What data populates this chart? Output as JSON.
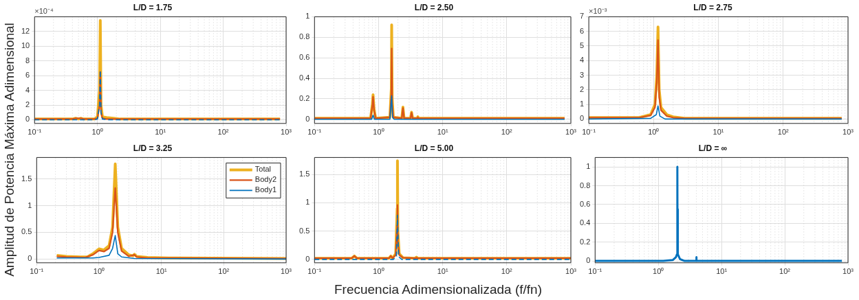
{
  "chart_data": [
    {
      "type": "line",
      "title": "L/D = 1.75",
      "annotations": [
        "×10⁻⁴"
      ],
      "log": "x",
      "grid": true,
      "xlim": [
        0.1,
        1000
      ],
      "xticks": [
        {
          "value": 0.1,
          "label": "10⁻¹"
        },
        {
          "value": 1,
          "label": "10⁰"
        },
        {
          "value": 10,
          "label": "10¹"
        },
        {
          "value": 100,
          "label": "10²"
        },
        {
          "value": 1000,
          "label": "10³"
        }
      ],
      "ylim": [
        -0.5,
        14
      ],
      "yticks": [
        0,
        2,
        4,
        6,
        8,
        10,
        12
      ],
      "series": [
        {
          "color": "#edb120",
          "x": [
            0.1,
            0.4,
            0.45,
            0.5,
            0.55,
            0.6,
            0.9,
            1.0,
            1.08,
            1.11,
            1.14,
            1.2,
            1.4,
            1.8,
            2.3,
            800
          ],
          "values": [
            0.1,
            0.1,
            0.2,
            0.1,
            0.2,
            0.1,
            0.1,
            0.4,
            4,
            13.5,
            2,
            0.4,
            0.3,
            0.2,
            0.1,
            0.1
          ]
        },
        {
          "color": "#d95319",
          "x": [
            0.1,
            0.4,
            0.45,
            0.55,
            0.6,
            0.9,
            1.0,
            1.08,
            1.11,
            1.14,
            1.2,
            1.4,
            2,
            800
          ],
          "values": [
            0.1,
            0.1,
            0.2,
            0.2,
            0.1,
            0.1,
            0.2,
            2,
            6.5,
            1,
            0.2,
            0.1,
            0.1,
            0.1
          ]
        },
        {
          "color": "#0072bd",
          "line_style": "dashed",
          "x": [
            0.1,
            0.9,
            1.0,
            1.08,
            1.11,
            1.14,
            1.2,
            1.5,
            800
          ],
          "values": [
            0,
            0,
            0.1,
            2,
            6.7,
            1,
            0.1,
            0,
            0
          ]
        }
      ]
    },
    {
      "type": "line",
      "title": "L/D = 2.50",
      "log": "x",
      "grid": true,
      "xlim": [
        0.1,
        1000
      ],
      "xticks": [
        {
          "value": 0.1,
          "label": "10⁻¹"
        },
        {
          "value": 1,
          "label": "10⁰"
        },
        {
          "value": 10,
          "label": "10¹"
        },
        {
          "value": 100,
          "label": "10²"
        },
        {
          "value": 1000,
          "label": "10³"
        }
      ],
      "ylim": [
        -0.04,
        1
      ],
      "yticks": [
        0,
        0.2,
        0.4,
        0.6,
        0.8,
        1
      ],
      "series": [
        {
          "color": "#edb120",
          "x": [
            0.1,
            0.75,
            0.8,
            0.82,
            0.85,
            0.9,
            1.5,
            1.58,
            1.6,
            1.63,
            1.7,
            2.3,
            2.4,
            2.5,
            3.15,
            3.27,
            3.4,
            4.0,
            4.1,
            4.2,
            5,
            800
          ],
          "values": [
            0.01,
            0.01,
            0.15,
            0.24,
            0.1,
            0.01,
            0.02,
            0.3,
            0.92,
            0.2,
            0.02,
            0.01,
            0.12,
            0.01,
            0.01,
            0.07,
            0.01,
            0.01,
            0.025,
            0.01,
            0.01,
            0.01
          ]
        },
        {
          "color": "#d95319",
          "x": [
            0.1,
            0.75,
            0.8,
            0.82,
            0.85,
            0.9,
            1.5,
            1.58,
            1.6,
            1.63,
            1.7,
            2.3,
            2.4,
            2.5,
            3.15,
            3.27,
            3.4,
            4.0,
            4.1,
            4.2,
            5,
            800
          ],
          "values": [
            0.01,
            0.01,
            0.13,
            0.22,
            0.09,
            0.01,
            0.02,
            0.25,
            0.69,
            0.15,
            0.02,
            0.01,
            0.11,
            0.01,
            0.01,
            0.065,
            0.01,
            0.01,
            0.02,
            0.01,
            0.01,
            0.01
          ]
        },
        {
          "color": "#0072bd",
          "x": [
            0.1,
            0.78,
            0.82,
            0.86,
            1.5,
            1.6,
            1.65,
            1.75,
            2.4,
            800
          ],
          "values": [
            0,
            0,
            0.04,
            0,
            0,
            0.23,
            0.02,
            0,
            0,
            0
          ]
        }
      ]
    },
    {
      "type": "line",
      "title": "L/D = 2.75",
      "annotations": [
        "×10⁻³"
      ],
      "log": "x",
      "grid": true,
      "xlim": [
        0.1,
        1000
      ],
      "xticks": [
        {
          "value": 0.1,
          "label": "10⁻¹"
        },
        {
          "value": 1,
          "label": "10⁰"
        },
        {
          "value": 10,
          "label": "10¹"
        },
        {
          "value": 100,
          "label": "10²"
        },
        {
          "value": 1000,
          "label": "10³"
        }
      ],
      "ylim": [
        -0.3,
        7
      ],
      "yticks": [
        0,
        1,
        2,
        3,
        4,
        5,
        6,
        7
      ],
      "series": [
        {
          "color": "#edb120",
          "x": [
            0.1,
            0.6,
            0.9,
            1.05,
            1.12,
            1.17,
            1.22,
            1.3,
            1.6,
            2,
            3,
            4,
            800
          ],
          "values": [
            0.1,
            0.1,
            0.3,
            1.0,
            3,
            6.3,
            2,
            0.8,
            0.3,
            0.15,
            0.05,
            0.05,
            0.05
          ]
        },
        {
          "color": "#d95319",
          "x": [
            0.1,
            0.6,
            0.9,
            1.05,
            1.12,
            1.17,
            1.22,
            1.3,
            1.6,
            2,
            3,
            800
          ],
          "values": [
            0.1,
            0.1,
            0.25,
            0.8,
            2.5,
            5.4,
            1.5,
            0.6,
            0.2,
            0.1,
            0.05,
            0.05
          ]
        },
        {
          "color": "#0072bd",
          "x": [
            0.1,
            0.9,
            1.1,
            1.17,
            1.25,
            1.5,
            800
          ],
          "values": [
            0,
            0.05,
            0.3,
            0.9,
            0.2,
            0,
            0
          ]
        }
      ]
    },
    {
      "type": "line",
      "title": "L/D = 3.25",
      "ylabel": "Amplitud de Potencia Máxima Adimensional",
      "legend": "top right",
      "log": "x",
      "grid": true,
      "xlim": [
        0.1,
        1000
      ],
      "xticks": [
        {
          "value": 0.1,
          "label": "10⁻¹"
        },
        {
          "value": 1,
          "label": "10⁰"
        },
        {
          "value": 10,
          "label": "10¹"
        },
        {
          "value": 100,
          "label": "10²"
        },
        {
          "value": 1000,
          "label": "10³"
        }
      ],
      "ylim": [
        -0.07,
        1.9
      ],
      "yticks": [
        0,
        0.5,
        1,
        1.5
      ],
      "series": [
        {
          "name": "Total",
          "color": "#edb120",
          "x": [
            0.21,
            0.3,
            0.5,
            0.65,
            0.8,
            1.0,
            1.2,
            1.45,
            1.65,
            1.82,
            2.0,
            2.3,
            3.0,
            3.5,
            3.7,
            4.0,
            6,
            13,
            1000
          ],
          "values": [
            0.07,
            0.05,
            0.04,
            0.04,
            0.1,
            0.19,
            0.17,
            0.25,
            0.6,
            1.78,
            0.6,
            0.2,
            0.08,
            0.06,
            0.09,
            0.05,
            0.03,
            0.02,
            0.01
          ]
        },
        {
          "name": "Body2",
          "color": "#d95319",
          "x": [
            0.21,
            0.3,
            0.6,
            0.8,
            1.0,
            1.2,
            1.45,
            1.65,
            1.82,
            2.0,
            2.3,
            3.0,
            3.7,
            4.0,
            6,
            1000
          ],
          "values": [
            0.05,
            0.04,
            0.03,
            0.08,
            0.16,
            0.14,
            0.2,
            0.5,
            1.33,
            0.5,
            0.15,
            0.05,
            0.08,
            0.04,
            0.02,
            0.01
          ]
        },
        {
          "name": "Body1",
          "color": "#0072bd",
          "x": [
            0.21,
            0.5,
            0.8,
            1.0,
            1.45,
            1.65,
            1.82,
            2.0,
            2.3,
            3.7,
            1000
          ],
          "values": [
            0.02,
            0.02,
            0.02,
            0.03,
            0.07,
            0.2,
            0.44,
            0.1,
            0.04,
            0.01,
            0
          ]
        }
      ]
    },
    {
      "type": "line",
      "title": "L/D = 5.00",
      "xlabel": "Frecuencia Adimensionalizada (f/fn)",
      "log": "x",
      "grid": true,
      "xlim": [
        0.1,
        1000
      ],
      "xticks": [
        {
          "value": 0.1,
          "label": "10⁻¹"
        },
        {
          "value": 1,
          "label": "10⁰"
        },
        {
          "value": 10,
          "label": "10¹"
        },
        {
          "value": 100,
          "label": "10²"
        },
        {
          "value": 1000,
          "label": "10³"
        }
      ],
      "ylim": [
        -0.06,
        1.8
      ],
      "yticks": [
        0,
        0.5,
        1,
        1.5
      ],
      "series": [
        {
          "color": "#edb120",
          "x": [
            0.1,
            0.38,
            0.42,
            0.46,
            1.45,
            1.55,
            1.65,
            1.85,
            1.95,
            1.97,
            2.0,
            2.1,
            2.4,
            3.7,
            3.9,
            4.1,
            8,
            1000
          ],
          "values": [
            0.02,
            0.02,
            0.06,
            0.02,
            0.02,
            0.06,
            0.02,
            0.1,
            0.9,
            1.74,
            0.5,
            0.1,
            0.03,
            0.02,
            0.04,
            0.02,
            0.02,
            0.02
          ]
        },
        {
          "color": "#d95319",
          "x": [
            0.1,
            0.38,
            0.42,
            0.46,
            1.45,
            1.55,
            1.65,
            1.85,
            1.95,
            1.97,
            2.0,
            2.1,
            2.4,
            3.7,
            3.9,
            4.1,
            8,
            1000
          ],
          "values": [
            0.02,
            0.02,
            0.06,
            0.02,
            0.02,
            0.06,
            0.02,
            0.08,
            0.6,
            0.96,
            0.3,
            0.08,
            0.03,
            0.02,
            0.03,
            0.02,
            0.02,
            0.02
          ]
        },
        {
          "color": "#0072bd",
          "line_style": "dashed",
          "x": [
            0.1,
            1.7,
            1.9,
            1.97,
            2.05,
            2.3,
            1000
          ],
          "values": [
            0,
            0,
            0.05,
            0.78,
            0.05,
            0,
            0
          ]
        }
      ]
    },
    {
      "type": "line",
      "title": "L/D = ∞",
      "log": "x",
      "grid": true,
      "xlim": [
        0.1,
        1000
      ],
      "xticks": [
        {
          "value": 0.1,
          "label": "10⁻¹"
        },
        {
          "value": 1,
          "label": "10⁰"
        },
        {
          "value": 10,
          "label": "10¹"
        },
        {
          "value": 100,
          "label": "10²"
        },
        {
          "value": 1000,
          "label": "10³"
        }
      ],
      "ylim": [
        -0.02,
        1.1
      ],
      "yticks": [
        0,
        0.2,
        0.4,
        0.6,
        0.8,
        1
      ],
      "series": [
        {
          "color": "#0072bd",
          "x": [
            0.1,
            1.2,
            1.7,
            1.9,
            1.97,
            2.0,
            2.01,
            2.02,
            2.05,
            2.2,
            2.6,
            3.98,
            4.0,
            4.02,
            800
          ],
          "values": [
            0,
            0,
            0.01,
            0.04,
            0.07,
            1.0,
            0.2,
            0.55,
            0.07,
            0.02,
            0,
            0,
            0.04,
            0,
            0
          ]
        }
      ]
    }
  ]
}
